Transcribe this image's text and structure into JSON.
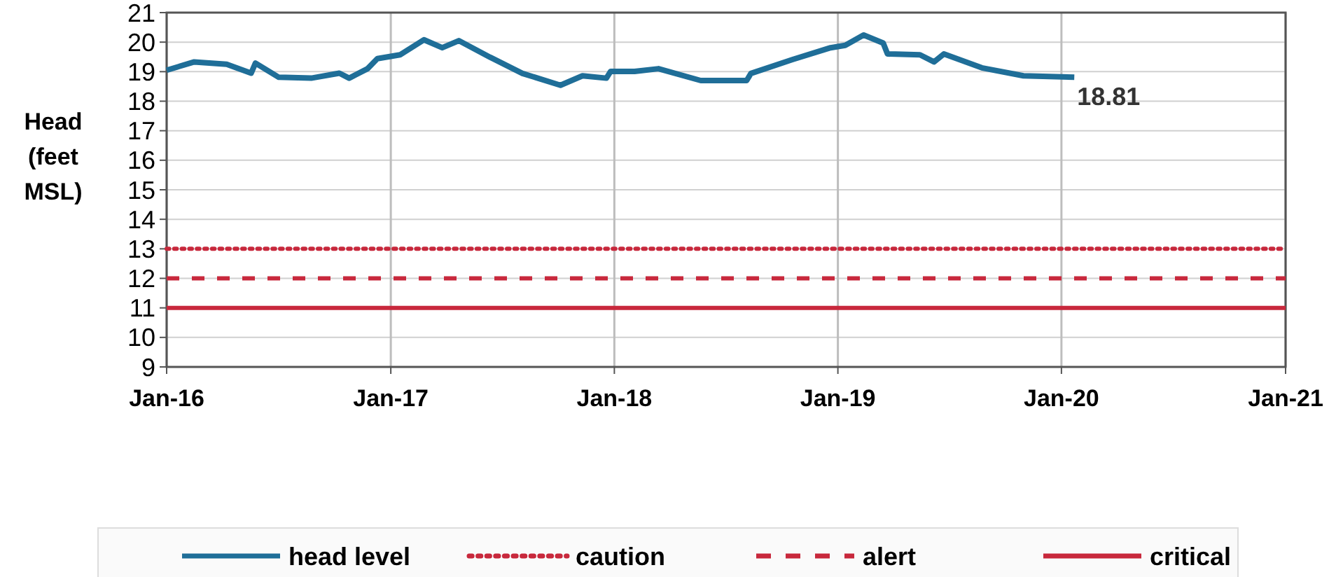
{
  "chart_data": {
    "type": "line",
    "ylabel": "Head (feet MSL)",
    "xlim": [
      "2016-01-01",
      "2021-01-01"
    ],
    "xticks": [
      {
        "value": "2016-01-01",
        "label": "Jan-16"
      },
      {
        "value": "2017-01-01",
        "label": "Jan-17"
      },
      {
        "value": "2018-01-01",
        "label": "Jan-18"
      },
      {
        "value": "2019-01-01",
        "label": "Jan-19"
      },
      {
        "value": "2020-01-01",
        "label": "Jan-20"
      },
      {
        "value": "2021-01-01",
        "label": "Jan-21"
      }
    ],
    "ylim": [
      9,
      21
    ],
    "yticks": [
      9,
      10,
      11,
      12,
      13,
      14,
      15,
      16,
      17,
      18,
      19,
      20,
      21
    ],
    "grid": true,
    "legend": "bottom",
    "marker": "none",
    "series": [
      {
        "name": "head level",
        "color": "#1f6e98",
        "line_style": "solid",
        "x": [
          "2016-01-01",
          "2016-02-15",
          "2016-04-08",
          "2016-05-18",
          "2016-05-25",
          "2016-07-02",
          "2016-08-24",
          "2016-10-09",
          "2016-10-25",
          "2016-11-24",
          "2016-12-10",
          "2017-01-16",
          "2017-02-24",
          "2017-03-26",
          "2017-04-22",
          "2017-06-12",
          "2017-08-04",
          "2017-10-05",
          "2017-11-10",
          "2017-12-19",
          "2017-12-26",
          "2018-02-03",
          "2018-03-14",
          "2018-05-22",
          "2018-07-06",
          "2018-08-05",
          "2018-08-12",
          "2018-10-19",
          "2018-12-20",
          "2019-01-13",
          "2019-02-12",
          "2019-03-16",
          "2019-03-23",
          "2019-05-15",
          "2019-06-07",
          "2019-06-23",
          "2019-08-24",
          "2019-10-31",
          "2020-01-22"
        ],
        "values": [
          19.05,
          19.33,
          19.25,
          18.95,
          19.29,
          18.81,
          18.78,
          18.95,
          18.78,
          19.1,
          19.44,
          19.57,
          20.08,
          19.81,
          20.05,
          19.49,
          18.94,
          18.54,
          18.86,
          18.78,
          19.01,
          19.01,
          19.1,
          18.7,
          18.7,
          18.7,
          18.94,
          19.41,
          19.81,
          19.89,
          20.24,
          19.97,
          19.6,
          19.57,
          19.33,
          19.6,
          19.13,
          18.86,
          18.81
        ]
      },
      {
        "name": "caution",
        "color": "#c8283c",
        "line_style": "dotted",
        "x": [
          "2016-01-01",
          "2021-01-01"
        ],
        "values": [
          13,
          13
        ]
      },
      {
        "name": "alert",
        "color": "#c8283c",
        "line_style": "dashed",
        "x": [
          "2016-01-01",
          "2021-01-01"
        ],
        "values": [
          12,
          12
        ]
      },
      {
        "name": "critical",
        "color": "#c8283c",
        "line_style": "solid",
        "x": [
          "2016-01-01",
          "2021-01-01"
        ],
        "values": [
          11,
          11
        ]
      }
    ],
    "annotations": [
      {
        "text": "18.81",
        "x": "2020-01-22",
        "y": 18.81
      }
    ]
  }
}
